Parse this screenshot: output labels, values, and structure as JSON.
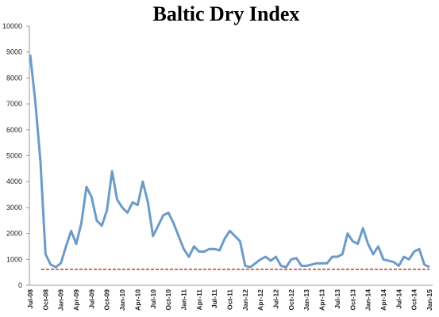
{
  "chart_data": {
    "type": "line",
    "title": "Baltic Dry Index",
    "categories": [
      "Jul-08",
      null,
      null,
      "Oct-08",
      null,
      null,
      "Jan-09",
      null,
      null,
      "Apr-09",
      null,
      null,
      "Jul-09",
      null,
      null,
      "Oct-09",
      null,
      null,
      "Jan-10",
      null,
      null,
      "Apr-10",
      null,
      null,
      "Jul-10",
      null,
      null,
      "Oct-10",
      null,
      null,
      "Jan-11",
      null,
      null,
      "Apr-11",
      null,
      null,
      "Jul-11",
      null,
      null,
      "Oct-11",
      null,
      null,
      "Jan-12",
      null,
      null,
      "Apr-12",
      null,
      null,
      "Jul-12",
      null,
      null,
      "Oct-12",
      null,
      null,
      "Jan-13",
      null,
      null,
      "Apr-13",
      null,
      null,
      "Jul-13",
      null,
      null,
      "Oct-13",
      null,
      null,
      "Jan-14",
      null,
      null,
      "Apr-14",
      null,
      null,
      "Jul-14",
      null,
      null,
      "Oct-14",
      null,
      null,
      "Jan-15"
    ],
    "values": [
      8900,
      7100,
      4800,
      1200,
      800,
      700,
      850,
      1500,
      2100,
      1600,
      2400,
      3800,
      3400,
      2500,
      2300,
      2900,
      4400,
      3300,
      3000,
      2800,
      3200,
      3100,
      4000,
      3200,
      1900,
      2300,
      2700,
      2800,
      2400,
      1900,
      1400,
      1100,
      1500,
      1300,
      1300,
      1400,
      1400,
      1350,
      1800,
      2100,
      1900,
      1700,
      750,
      700,
      850,
      1000,
      1100,
      950,
      1100,
      750,
      700,
      1000,
      1050,
      750,
      750,
      800,
      850,
      850,
      850,
      1100,
      1100,
      1200,
      2000,
      1700,
      1600,
      2200,
      1600,
      1200,
      1500,
      1000,
      950,
      900,
      750,
      1100,
      1000,
      1300,
      1400,
      800,
      700
    ],
    "color": "#6b9bc8",
    "reference_line": {
      "value": 620,
      "color": "#c0392b"
    },
    "ylim": [
      0,
      10000
    ],
    "yticks": [
      0,
      1000,
      2000,
      3000,
      4000,
      5000,
      6000,
      7000,
      8000,
      9000,
      10000
    ],
    "grid": false
  }
}
